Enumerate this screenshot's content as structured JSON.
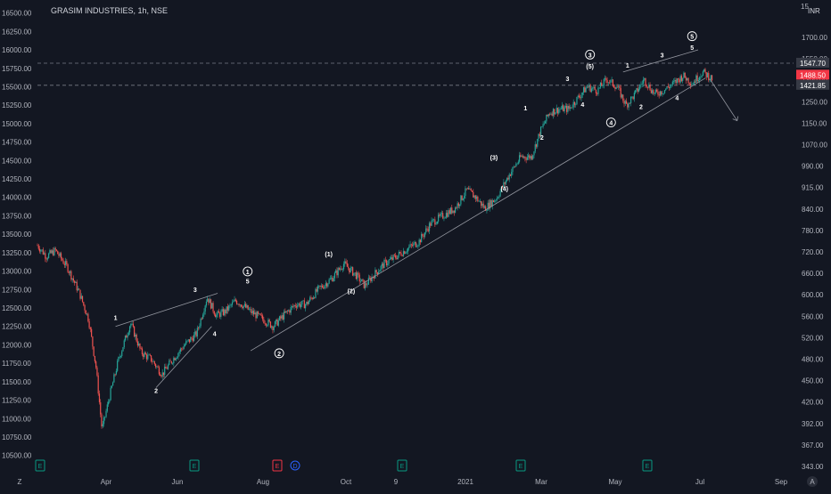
{
  "header": {
    "title": "GRASIM INDUSTRIES, 1h, NSE",
    "currency_badge": "INR",
    "right_scale_top_label": "15"
  },
  "chart_data": {
    "type": "candlestick",
    "symbol": "GRASIM INDUSTRIES",
    "interval": "1h",
    "exchange": "NSE",
    "left_axis": {
      "ticks": [
        10500,
        10750,
        11000,
        11250,
        11500,
        11750,
        12000,
        12250,
        12500,
        12750,
        13000,
        13250,
        13500,
        13750,
        14000,
        14250,
        14500,
        14750,
        15000,
        15250,
        15500,
        15750,
        16000,
        16250,
        16500
      ],
      "tick_labels": [
        "10500.00",
        "10750.00",
        "11000.00",
        "11250.00",
        "11500.00",
        "11750.00",
        "12000.00",
        "12250.00",
        "12500.00",
        "12750.00",
        "13000.00",
        "13250.00",
        "13500.00",
        "13750.00",
        "14000.00",
        "14250.00",
        "14500.00",
        "14750.00",
        "15000.00",
        "15250.00",
        "15500.00",
        "15750.00",
        "16000.00",
        "16250.00",
        "16500.00"
      ],
      "range": [
        10400,
        16580
      ]
    },
    "right_axis": {
      "scale": "log",
      "tick_labels": [
        "1700.00",
        "1550.00",
        "1390.00",
        "1250.00",
        "1150.00",
        "1070.00",
        "990.00",
        "915.00",
        "840.00",
        "780.00",
        "720.00",
        "660.00",
        "600.00",
        "560.00",
        "520.00",
        "480.00",
        "450.00",
        "420.00",
        "392.00",
        "367.00",
        "343.00"
      ],
      "price_labels": [
        {
          "text": "1547.70",
          "kind": "level"
        },
        {
          "text": "1488.50",
          "kind": "last"
        },
        {
          "text": "1421.85",
          "kind": "level"
        }
      ]
    },
    "x_axis": {
      "tick_labels": [
        "Apr",
        "Jun",
        "Aug",
        "Oct",
        "9",
        "2021",
        "Mar",
        "May",
        "Jul",
        "Sep"
      ]
    },
    "horizontal_levels": [
      1547.7,
      1421.85
    ],
    "series_path": [
      [
        0,
        13350
      ],
      [
        0.6,
        13200
      ],
      [
        1.2,
        13280
      ],
      [
        2,
        13050
      ],
      [
        2.8,
        12700
      ],
      [
        3.4,
        12350
      ],
      [
        3.9,
        11700
      ],
      [
        4.3,
        10850
      ],
      [
        4.8,
        11300
      ],
      [
        5.4,
        11800
      ],
      [
        6.2,
        12300
      ],
      [
        6.9,
        11900
      ],
      [
        7.6,
        11800
      ],
      [
        8.3,
        11600
      ],
      [
        9.0,
        11800
      ],
      [
        9.8,
        12000
      ],
      [
        10.6,
        12150
      ],
      [
        11.3,
        12650
      ],
      [
        11.9,
        12400
      ],
      [
        12.5,
        12450
      ],
      [
        13.2,
        12600
      ],
      [
        13.6,
        12550
      ],
      [
        14.2,
        12450
      ],
      [
        15.0,
        12350
      ],
      [
        15.7,
        12250
      ],
      [
        16.4,
        12400
      ],
      [
        17.2,
        12550
      ],
      [
        17.9,
        12550
      ],
      [
        18.7,
        12750
      ],
      [
        19.6,
        12900
      ],
      [
        20.4,
        13100
      ],
      [
        21.2,
        12950
      ],
      [
        21.8,
        12800
      ],
      [
        22.4,
        12950
      ],
      [
        23.1,
        13100
      ],
      [
        23.9,
        13200
      ],
      [
        24.6,
        13300
      ],
      [
        25.4,
        13400
      ],
      [
        26.2,
        13650
      ],
      [
        27.0,
        13750
      ],
      [
        27.8,
        13850
      ],
      [
        28.6,
        14100
      ],
      [
        29.2,
        14000
      ],
      [
        29.8,
        13850
      ],
      [
        30.6,
        14000
      ],
      [
        31.4,
        14300
      ],
      [
        32.2,
        14550
      ],
      [
        32.9,
        14550
      ],
      [
        33.5,
        14900
      ],
      [
        34.1,
        15150
      ],
      [
        34.8,
        15200
      ],
      [
        35.4,
        15200
      ],
      [
        36.0,
        15350
      ],
      [
        36.6,
        15500
      ],
      [
        37.3,
        15450
      ],
      [
        37.9,
        15600
      ],
      [
        38.6,
        15500
      ],
      [
        39.2,
        15250
      ],
      [
        39.8,
        15400
      ],
      [
        40.4,
        15600
      ],
      [
        41.1,
        15400
      ],
      [
        41.7,
        15450
      ],
      [
        42.4,
        15550
      ],
      [
        43.0,
        15650
      ],
      [
        43.6,
        15550
      ],
      [
        44.3,
        15700
      ],
      [
        45.0,
        15600
      ]
    ],
    "wave_labels": [
      {
        "text": "1",
        "x": 5.2,
        "price": 12335
      },
      {
        "text": "2",
        "x": 7.9,
        "price": 11350
      },
      {
        "text": "3",
        "x": 10.5,
        "price": 12720
      },
      {
        "text": "4",
        "x": 11.8,
        "price": 12120
      },
      {
        "text": "5",
        "x": 14.0,
        "price": 12830
      },
      {
        "text": "①",
        "x": 14.0,
        "price": 12960,
        "circled": true
      },
      {
        "text": "②",
        "x": 16.1,
        "price": 11850,
        "circled": true
      },
      {
        "text": "(1)",
        "x": 19.4,
        "price": 13200
      },
      {
        "text": "(2)",
        "x": 20.9,
        "price": 12700
      },
      {
        "text": "1",
        "x": 32.5,
        "price": 15180
      },
      {
        "text": "2",
        "x": 33.6,
        "price": 14780
      },
      {
        "text": "(3)",
        "x": 30.4,
        "price": 14510
      },
      {
        "text": "(4)",
        "x": 31.1,
        "price": 14090
      },
      {
        "text": "3",
        "x": 35.3,
        "price": 15580
      },
      {
        "text": "4",
        "x": 36.3,
        "price": 15230
      },
      {
        "text": "③",
        "x": 36.8,
        "price": 15900,
        "circled": true
      },
      {
        "text": "(5)",
        "x": 36.8,
        "price": 15750
      },
      {
        "text": "④",
        "x": 38.2,
        "price": 14980,
        "circled": true
      },
      {
        "text": "1",
        "x": 39.3,
        "price": 15760
      },
      {
        "text": "2",
        "x": 40.2,
        "price": 15200
      },
      {
        "text": "3",
        "x": 41.6,
        "price": 15900
      },
      {
        "text": "4",
        "x": 42.6,
        "price": 15320
      },
      {
        "text": "5",
        "x": 43.6,
        "price": 16000
      },
      {
        "text": "⑤",
        "x": 43.6,
        "price": 16150,
        "circled": true
      }
    ],
    "trendlines": [
      {
        "name": "wave-1-upper",
        "from": [
          5.2,
          12250
        ],
        "to": [
          12.0,
          12700
        ]
      },
      {
        "name": "wave-1-lower",
        "from": [
          7.9,
          11420
        ],
        "to": [
          11.6,
          12250
        ]
      },
      {
        "name": "main-trend",
        "from": [
          14.2,
          11920
        ],
        "to": [
          44.5,
          15620
        ]
      },
      {
        "name": "wave-5-upper",
        "from": [
          39.0,
          15700
        ],
        "to": [
          44.0,
          16000
        ]
      },
      {
        "name": "projection-arrow",
        "from": [
          44.8,
          15600
        ],
        "to": [
          46.6,
          15040
        ]
      }
    ]
  },
  "markers": {
    "bottom_events": [
      {
        "text": "E",
        "color": "#089981"
      },
      {
        "text": "E",
        "color": "#089981"
      },
      {
        "text": "E",
        "color": "#f23645"
      },
      {
        "text": "D",
        "color": "#2962ff"
      },
      {
        "text": "E",
        "color": "#089981"
      },
      {
        "text": "E",
        "color": "#089981"
      },
      {
        "text": "E",
        "color": "#089981"
      }
    ],
    "left_edge_flag": "E",
    "corner_left": "Z",
    "corner_right": "A"
  },
  "colors": {
    "background": "#131722",
    "up": "#26a69a",
    "down": "#ef5350",
    "text": "#b2b5be",
    "grid_line": "#2a2e39",
    "last_price_bg": "#f23645",
    "level_bg": "#363a45"
  }
}
